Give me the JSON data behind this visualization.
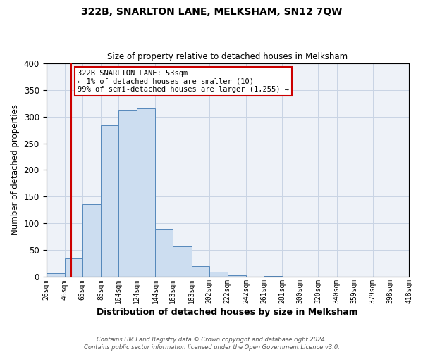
{
  "title": "322B, SNARLTON LANE, MELKSHAM, SN12 7QW",
  "subtitle": "Size of property relative to detached houses in Melksham",
  "xlabel": "Distribution of detached houses by size in Melksham",
  "ylabel": "Number of detached properties",
  "bar_color": "#ccddf0",
  "bar_edge_color": "#5588bb",
  "grid_color": "#c8d4e4",
  "background_color": "#eef2f8",
  "bin_edges": [
    26,
    46,
    65,
    85,
    104,
    124,
    144,
    163,
    183,
    202,
    222,
    242,
    261,
    281,
    300,
    320,
    340,
    359,
    379,
    398,
    418
  ],
  "bar_heights": [
    7,
    35,
    136,
    283,
    312,
    315,
    90,
    57,
    20,
    10,
    3,
    1,
    2,
    0,
    1,
    0,
    0,
    1,
    0,
    1
  ],
  "tick_labels": [
    "26sqm",
    "46sqm",
    "65sqm",
    "85sqm",
    "104sqm",
    "124sqm",
    "144sqm",
    "163sqm",
    "183sqm",
    "202sqm",
    "222sqm",
    "242sqm",
    "261sqm",
    "281sqm",
    "300sqm",
    "320sqm",
    "340sqm",
    "359sqm",
    "379sqm",
    "398sqm",
    "418sqm"
  ],
  "ylim": [
    0,
    400
  ],
  "yticks": [
    0,
    50,
    100,
    150,
    200,
    250,
    300,
    350,
    400
  ],
  "property_line_x": 53,
  "annotation_title": "322B SNARLTON LANE: 53sqm",
  "annotation_line1": "← 1% of detached houses are smaller (10)",
  "annotation_line2": "99% of semi-detached houses are larger (1,255) →",
  "annotation_box_color": "#ffffff",
  "annotation_border_color": "#cc0000",
  "line_color": "#cc0000",
  "footer_line1": "Contains HM Land Registry data © Crown copyright and database right 2024.",
  "footer_line2": "Contains public sector information licensed under the Open Government Licence v3.0."
}
